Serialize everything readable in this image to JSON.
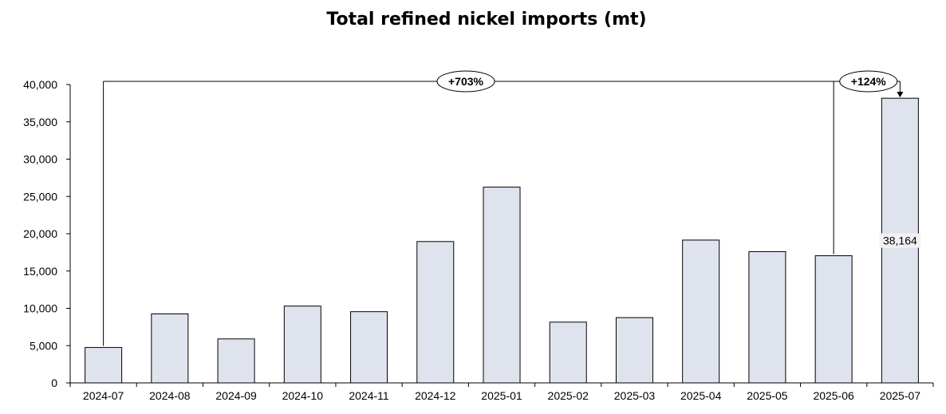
{
  "chart_data": {
    "type": "bar",
    "title": "Total refined nickel imports (mt)",
    "xlabel": "",
    "ylabel": "",
    "categories": [
      "2024-07",
      "2024-08",
      "2024-09",
      "2024-10",
      "2024-11",
      "2024-12",
      "2025-01",
      "2025-02",
      "2025-03",
      "2025-04",
      "2025-05",
      "2025-06",
      "2025-07"
    ],
    "values": [
      4750,
      9250,
      5900,
      10300,
      9550,
      18950,
      26250,
      8150,
      8750,
      19150,
      17600,
      17050,
      38164
    ],
    "ylim": [
      0,
      40000
    ],
    "yticks": [
      0,
      5000,
      10000,
      15000,
      20000,
      25000,
      30000,
      35000,
      40000
    ],
    "ytick_labels": [
      "0",
      "5,000",
      "10,000",
      "15,000",
      "20,000",
      "25,000",
      "30,000",
      "35,000",
      "40,000"
    ],
    "grid": false,
    "bar_fill": "#dfe3ed",
    "bar_stroke": "#000000",
    "data_labels": [
      {
        "category": "2025-07",
        "text": "38,164"
      }
    ],
    "annotations": [
      {
        "text": "+703%",
        "from": "2024-07",
        "to": "2025-07"
      },
      {
        "text": "+124%",
        "from": "2025-06",
        "to": "2025-07"
      }
    ]
  }
}
